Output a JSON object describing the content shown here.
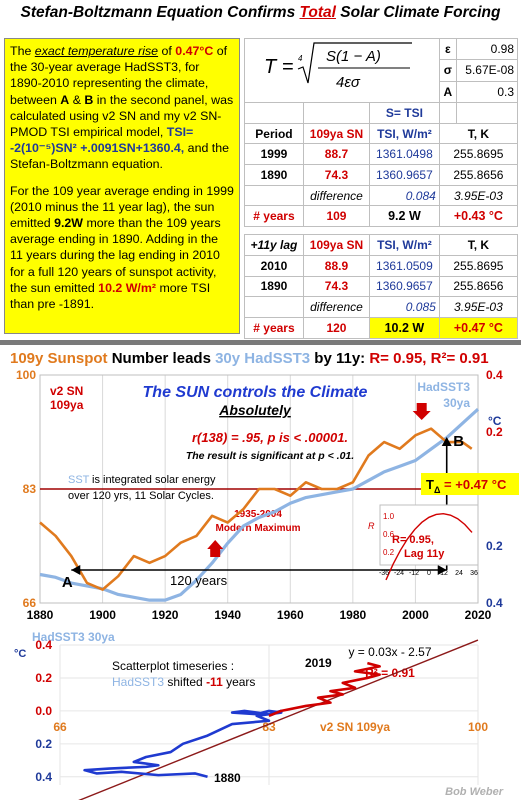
{
  "title": {
    "pre": "Stefan-Boltzmann Equation ",
    "mid": "Confirms ",
    "emph": "Total",
    "post": " Solar Climate Forcing"
  },
  "note": {
    "p1": [
      {
        "t": "The ",
        "c": ""
      },
      {
        "t": "exact temperature rise",
        "c": "ital"
      },
      {
        "t": " of ",
        "c": ""
      },
      {
        "t": "0.47°C",
        "c": "red"
      },
      {
        "t": " of the 30-year average HadSST3, for 1890-2010 representing the climate, between ",
        "c": ""
      },
      {
        "t": "A",
        "c": "b"
      },
      {
        "t": " & ",
        "c": ""
      },
      {
        "t": "B",
        "c": "b"
      },
      {
        "t": " in the second  panel, was calculated using v2 SN and my v2 SN-PMOD TSI empirical model, ",
        "c": ""
      },
      {
        "t": "TSI= -2(10⁻⁵)SN² +.0091SN+1360.4,",
        "c": "blue"
      },
      {
        "t": " and the Stefan-Boltzmann equation.",
        "c": ""
      }
    ],
    "p2": [
      {
        "t": "For the 109 year average ending in 1999 (2010 minus the 11 year lag), the sun emitted ",
        "c": ""
      },
      {
        "t": "9.2W",
        "c": "b"
      },
      {
        "t": " more than the 109 years average ending in 1890. Adding in the 11 years during the lag ending in 2010 for a full 120 years of sunspot activity, the sun emitted ",
        "c": ""
      },
      {
        "t": "10.2 W/m²",
        "c": "red"
      },
      {
        "t": " more TSI than pre -1891.",
        "c": ""
      }
    ]
  },
  "table": {
    "formula": "T = ⁴√( S(1−A) / 4εσ )",
    "params": [
      {
        "sym": "ε",
        "val": "0.98"
      },
      {
        "sym": "σ",
        "val": "5.67E-08"
      },
      {
        "sym": "A",
        "val": "0.3"
      }
    ],
    "s_eq": "S= TSI",
    "head1": [
      "Period",
      "109ya SN",
      "TSI, W/m²",
      "T, K"
    ],
    "rows1": [
      [
        "1999",
        "88.7",
        "1361.0498",
        "255.8695"
      ],
      [
        "1890",
        "74.3",
        "1360.9657",
        "255.8656"
      ]
    ],
    "diff1": [
      "difference",
      "0.084",
      "3.95E-03"
    ],
    "years1": [
      "# years",
      "109",
      "9.2 W",
      "+0.43 °C"
    ],
    "head2": [
      "+11y lag",
      "109ya SN",
      "TSI, W/m²",
      "T, K"
    ],
    "rows2": [
      [
        "2010",
        "88.9",
        "1361.0509",
        "255.8695"
      ],
      [
        "1890",
        "74.3",
        "1360.9657",
        "255.8656"
      ]
    ],
    "diff2": [
      "difference",
      "0.085",
      "3.95E-03"
    ],
    "years2": [
      "# years",
      "120",
      "10.2 W",
      "+0.47 °C"
    ]
  },
  "colors": {
    "sn": "#e07a1e",
    "sst": "#8eb4e3",
    "red": "#d00000",
    "darkblue": "#1f3a9a",
    "scatter_blue": "#1f3ad0"
  },
  "chart_data": [
    {
      "type": "line",
      "title_parts": [
        {
          "t": "109y ",
          "c": "sn"
        },
        {
          "t": "Sunspot",
          "c": "sn"
        },
        {
          "t": " Number",
          "c": "k"
        },
        {
          "t": " leads ",
          "c": "k"
        },
        {
          "t": "30y HadSST3",
          "c": "sst"
        },
        {
          "t": " by 11y: ",
          "c": "k"
        },
        {
          "t": "R= 0.95, R²= 0.91",
          "c": "red"
        }
      ],
      "subtitle": "The SUN controls the Climate",
      "subtitle2": "Absolutely",
      "stat1": "r(138) = .95, p is < .00001.",
      "stat2": "The result is significant at p < .01.",
      "left_axis_label": [
        "v2 SN",
        "109ya"
      ],
      "right_axis_label": [
        "HadSST3",
        "30ya"
      ],
      "right_unit": "°C",
      "annotation_sst": "SST is integrated solar energy",
      "annotation_sst2": "over 120 yrs, 11 Solar Cycles.",
      "annotation_period": "1935-2004",
      "annotation_period2": "Modern Maximum",
      "inset_text": "R= 0.95,",
      "inset_text2": "Lag 11y",
      "inset_axis_label": "R",
      "inset_ticks_y": [
        "1.0",
        "0.6",
        "0.2"
      ],
      "inset_ticks_x": [
        "-36",
        "-24",
        "-12",
        "0",
        "12",
        "24",
        "36"
      ],
      "span_label": "120 years",
      "marker_a": "A",
      "marker_b": "B",
      "delta_label_pre": "T",
      "delta_label_sub": "Δ",
      "delta_label_post": "=  +0.47 °C",
      "x_ticks": [
        1880,
        1900,
        1920,
        1940,
        1960,
        1980,
        2000,
        2020
      ],
      "xlim": [
        1880,
        2020
      ],
      "left_ticks": [
        100,
        83,
        66
      ],
      "ylim_left": [
        66,
        100
      ],
      "right_ticks": [
        "0.4",
        "0.2",
        "0.0",
        "0.2",
        "0.4"
      ],
      "right_tick_values": [
        0.4,
        0.2,
        0.0,
        -0.2,
        -0.4
      ],
      "ylim_right": [
        -0.4,
        0.4
      ],
      "series": [
        {
          "name": "v2 SN 109ya",
          "axis": "left",
          "x": [
            1880,
            1885,
            1890,
            1895,
            1900,
            1905,
            1910,
            1915,
            1920,
            1925,
            1930,
            1935,
            1940,
            1945,
            1950,
            1955,
            1960,
            1965,
            1970,
            1975,
            1980,
            1985,
            1990,
            1995,
            2000,
            2005,
            2010,
            2015,
            2018
          ],
          "y": [
            78,
            76,
            73,
            69,
            68,
            70,
            73,
            72,
            73,
            75,
            76,
            79,
            78,
            80,
            83,
            83,
            82,
            84,
            83,
            83,
            84,
            88,
            90,
            89,
            91,
            92,
            90,
            90,
            89
          ]
        },
        {
          "name": "HadSST3 30ya",
          "axis": "right",
          "x": [
            1880,
            1885,
            1890,
            1895,
            1900,
            1905,
            1910,
            1915,
            1920,
            1925,
            1930,
            1935,
            1940,
            1945,
            1950,
            1955,
            1960,
            1965,
            1970,
            1975,
            1980,
            1985,
            1990,
            1995,
            2000,
            2005,
            2010,
            2015,
            2020
          ],
          "y": [
            -0.3,
            -0.31,
            -0.33,
            -0.34,
            -0.35,
            -0.37,
            -0.38,
            -0.39,
            -0.39,
            -0.37,
            -0.32,
            -0.26,
            -0.19,
            -0.13,
            -0.1,
            -0.08,
            -0.05,
            -0.03,
            -0.02,
            -0.01,
            0.0,
            0.03,
            0.06,
            0.08,
            0.1,
            0.14,
            0.18,
            0.23,
            0.28
          ]
        }
      ]
    },
    {
      "type": "scatter",
      "y_axis_label": "HadSST3 30ya",
      "y_unit": "°C",
      "x_axis_label": "v2 SN 109ya",
      "y_ticks": [
        "0.4",
        "0.2",
        "0.0",
        "0.2",
        "0.4"
      ],
      "y_tick_values": [
        0.4,
        0.2,
        0.0,
        -0.2,
        -0.4
      ],
      "x_ticks": [
        66,
        83,
        100
      ],
      "xlim": [
        66,
        100
      ],
      "ylim": [
        -0.45,
        0.4
      ],
      "legend_text": "Scatterplot timeseries :",
      "legend_text2_series": "HadSST3",
      "legend_text2_rest": " shifted ",
      "legend_text2_shift": "-11",
      "legend_text2_end": " years",
      "equation": "y = 0.03x - 2.57",
      "r2": "R² = 0.91",
      "label_2019": "2019",
      "label_1880": "1880",
      "credit": "Bob Weber",
      "trend": {
        "x": [
          66,
          100
        ],
        "y": [
          -0.59,
          0.43
        ]
      },
      "series": [
        {
          "name": "HadSST3",
          "x": [
            78,
            77,
            74,
            71,
            69,
            68,
            70,
            73,
            74,
            72,
            73,
            75,
            76,
            78,
            80,
            83,
            82,
            84,
            83,
            82,
            80,
            81,
            83,
            84,
            83
          ],
          "y": [
            -0.4,
            -0.38,
            -0.39,
            -0.37,
            -0.38,
            -0.36,
            -0.35,
            -0.34,
            -0.33,
            -0.31,
            -0.28,
            -0.25,
            -0.2,
            -0.15,
            -0.08,
            -0.06,
            -0.03,
            -0.01,
            0.0,
            -0.02,
            -0.01,
            0.0,
            -0.02,
            0.0,
            -0.03
          ]
        },
        {
          "name": "recent",
          "x": [
            83,
            84,
            86,
            88,
            87,
            89,
            88,
            90,
            89,
            91,
            92,
            90,
            92,
            91
          ],
          "y": [
            -0.03,
            0.0,
            0.03,
            0.05,
            0.08,
            0.1,
            0.12,
            0.14,
            0.17,
            0.2,
            0.22,
            0.24,
            0.27,
            0.29
          ]
        }
      ]
    }
  ]
}
